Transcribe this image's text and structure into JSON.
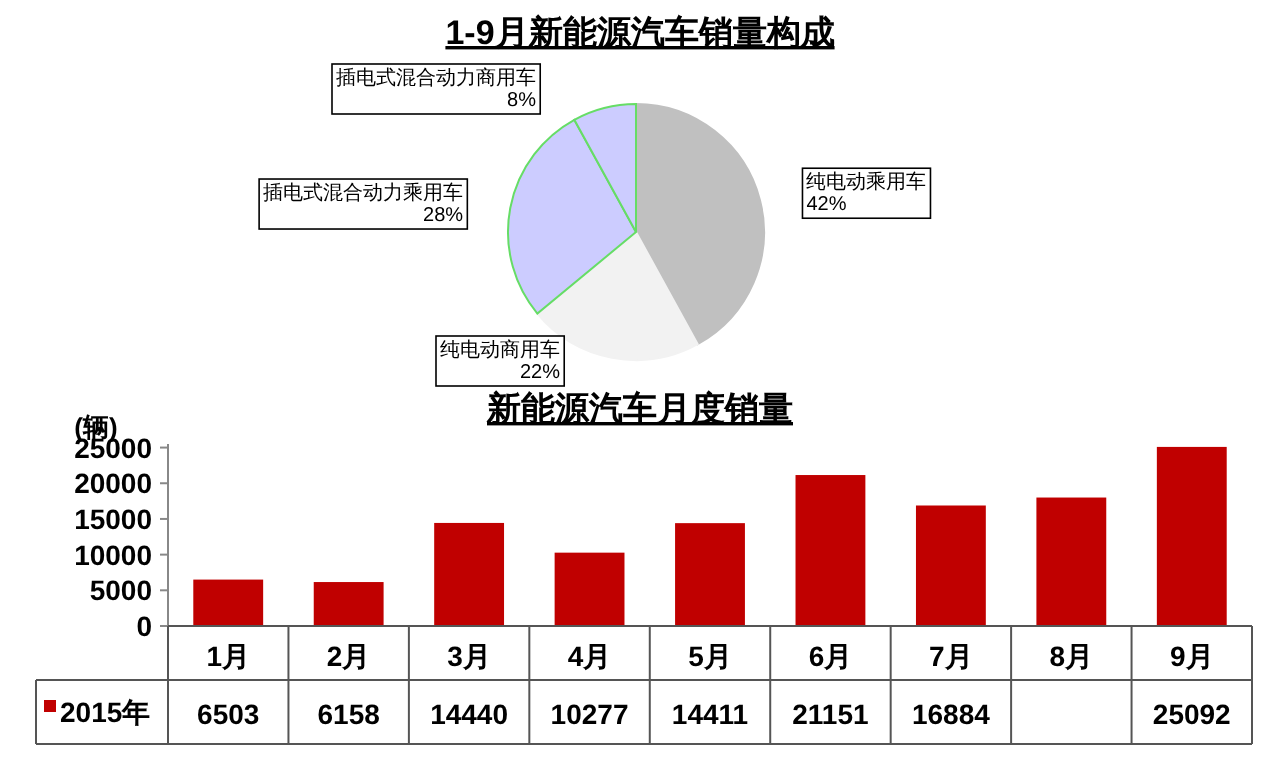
{
  "chart_data": [
    {
      "type": "pie",
      "title": "1-9月新能源汽车销量构成",
      "categories": [
        "纯电动乘用车",
        "纯电动商用车",
        "插电式混合动力乘用车",
        "插电式混合动力商用车"
      ],
      "values": [
        42,
        22,
        28,
        8
      ],
      "value_labels": [
        "42%",
        "22%",
        "28%",
        "8%"
      ],
      "colors": [
        "#c0c0c0",
        "#f2f2f2",
        "#ccccff",
        "#ccccff"
      ],
      "legend": false
    },
    {
      "type": "bar",
      "title": "新能源汽车月度销量",
      "ylabel": "(辆)",
      "categories": [
        "1月",
        "2月",
        "3月",
        "4月",
        "5月",
        "6月",
        "7月",
        "8月",
        "9月"
      ],
      "series": [
        {
          "name": "2015年",
          "color": "#c00000",
          "values": [
            6503,
            6158,
            14440,
            10277,
            14411,
            21151,
            16884,
            18000,
            25092
          ],
          "value_labels": [
            "6503",
            "6158",
            "14440",
            "10277",
            "14411",
            "21151",
            "16884",
            null,
            "25092"
          ]
        }
      ],
      "ylim": [
        0,
        25500
      ],
      "yticks": [
        0,
        5000,
        10000,
        15000,
        20000,
        25000
      ],
      "grid": false,
      "legend": "bottom"
    }
  ]
}
